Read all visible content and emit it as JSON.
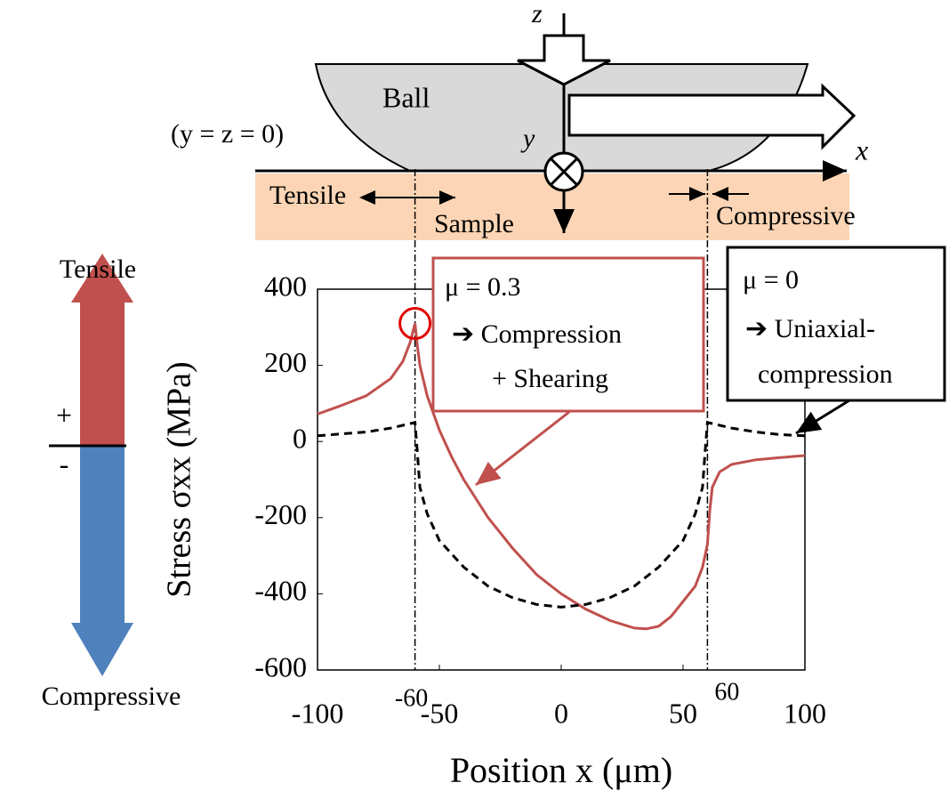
{
  "chart_data": {
    "type": "line",
    "xlabel": "Position x (μm)",
    "ylabel": "Stress σxx (MPa)",
    "xlim": [
      -100,
      100
    ],
    "ylim": [
      -600,
      400
    ],
    "xticks": [
      -100,
      -50,
      0,
      50,
      100
    ],
    "yticks": [
      400,
      200,
      0,
      -200,
      -400,
      -600
    ],
    "grid": false,
    "vlines": [
      -60,
      60
    ],
    "series": [
      {
        "name": "μ = 0.3",
        "color": "#c0504d",
        "linestyle": "solid",
        "x": [
          -100,
          -90,
          -80,
          -70,
          -65,
          -62,
          -60,
          -59,
          -58,
          -55,
          -50,
          -45,
          -40,
          -30,
          -20,
          -10,
          0,
          10,
          20,
          30,
          35,
          40,
          45,
          50,
          55,
          58,
          60,
          61,
          62,
          65,
          70,
          80,
          90,
          100
        ],
        "values": [
          72,
          95,
          120,
          165,
          210,
          260,
          310,
          250,
          200,
          120,
          30,
          -40,
          -100,
          -200,
          -280,
          -350,
          -400,
          -440,
          -470,
          -490,
          -492,
          -485,
          -460,
          -420,
          -380,
          -330,
          -270,
          -180,
          -120,
          -80,
          -60,
          -48,
          -42,
          -37
        ]
      },
      {
        "name": "μ = 0",
        "color": "#000000",
        "linestyle": "dashed",
        "x": [
          -100,
          -90,
          -80,
          -70,
          -60,
          -59,
          -58,
          -55,
          -50,
          -40,
          -30,
          -20,
          -10,
          0,
          10,
          20,
          30,
          40,
          50,
          55,
          58,
          59,
          60,
          70,
          80,
          90,
          100
        ],
        "values": [
          15,
          20,
          25,
          35,
          50,
          -30,
          -120,
          -190,
          -260,
          -330,
          -380,
          -410,
          -428,
          -435,
          -428,
          -410,
          -380,
          -330,
          -260,
          -190,
          -120,
          -30,
          50,
          35,
          25,
          18,
          15
        ]
      }
    ],
    "annotations": {
      "callout_1": [
        "➔ Compression",
        "+ Shearing"
      ],
      "callout_2": [
        "➔ Uniaxial-",
        "compression"
      ],
      "z": "z",
      "ball": "Ball",
      "origin": "(y = z = 0)",
      "y": "y",
      "x": "x",
      "tensile_top": "Tensile",
      "sample": "Sample",
      "compressive_top": "Compressive",
      "tensile_side": "Tensile",
      "plus": "+",
      "minus": "-",
      "compressive_side": "Compressive"
    }
  }
}
